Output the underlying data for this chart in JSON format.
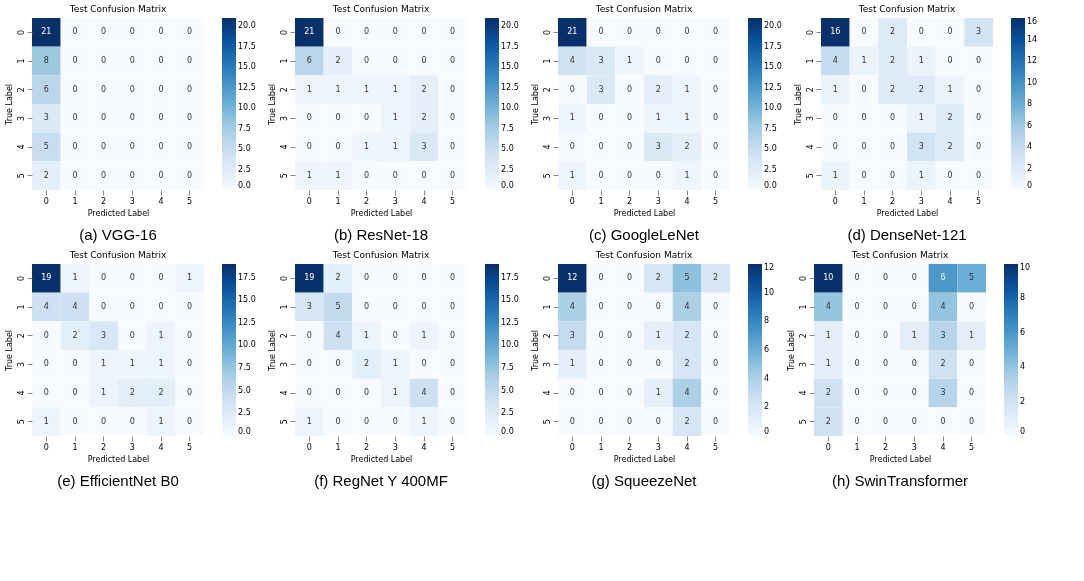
{
  "chart_data": [
    {
      "type": "heatmap",
      "title": "Test Confusion Matrix",
      "xlabel": "Predicted Label",
      "ylabel": "True Label",
      "annotations": [
        "(a) VGG-16"
      ],
      "data_labels": true,
      "categories": [
        "0",
        "1",
        "2",
        "3",
        "4",
        "5"
      ],
      "y_categories": [
        "0",
        "1",
        "2",
        "3",
        "4",
        "5"
      ],
      "cells": [
        [
          21,
          0,
          0,
          0,
          0,
          0
        ],
        [
          8,
          0,
          0,
          0,
          0,
          0
        ],
        [
          6,
          0,
          0,
          0,
          0,
          0
        ],
        [
          3,
          0,
          0,
          0,
          0,
          0
        ],
        [
          5,
          0,
          0,
          0,
          0,
          0
        ],
        [
          2,
          0,
          0,
          0,
          0,
          0
        ]
      ],
      "clim": [
        0,
        21
      ],
      "cticks": [
        {
          "value": 0,
          "label": "0.0"
        },
        2.5,
        {
          "value": 5,
          "label": "5.0"
        },
        7.5,
        {
          "value": 10,
          "label": "10.0"
        },
        12.5,
        {
          "value": 15,
          "label": "15.0"
        },
        17.5,
        {
          "value": 20,
          "label": "20.0"
        }
      ]
    },
    {
      "type": "heatmap",
      "title": "Test Confusion Matrix",
      "xlabel": "Predicted Label",
      "ylabel": "True Label",
      "annotations": [
        "(b) ResNet-18"
      ],
      "data_labels": true,
      "categories": [
        "0",
        "1",
        "2",
        "3",
        "4",
        "5"
      ],
      "y_categories": [
        "0",
        "1",
        "2",
        "3",
        "4",
        "5"
      ],
      "cells": [
        [
          21,
          0,
          0,
          0,
          0,
          0
        ],
        [
          6,
          2,
          0,
          0,
          0,
          0
        ],
        [
          1,
          1,
          1,
          1,
          2,
          0
        ],
        [
          0,
          0,
          0,
          1,
          2,
          0
        ],
        [
          0,
          0,
          1,
          1,
          3,
          0
        ],
        [
          1,
          1,
          0,
          0,
          0,
          0
        ]
      ],
      "clim": [
        0,
        21
      ],
      "cticks": [
        {
          "value": 0,
          "label": "0.0"
        },
        2.5,
        {
          "value": 5,
          "label": "5.0"
        },
        7.5,
        {
          "value": 10,
          "label": "10.0"
        },
        12.5,
        {
          "value": 15,
          "label": "15.0"
        },
        17.5,
        {
          "value": 20,
          "label": "20.0"
        }
      ]
    },
    {
      "type": "heatmap",
      "title": "Test Confusion Matrix",
      "xlabel": "Predicted Label",
      "ylabel": "True Label",
      "annotations": [
        "(c) GoogleLeNet"
      ],
      "data_labels": true,
      "categories": [
        "0",
        "1",
        "2",
        "3",
        "4",
        "5"
      ],
      "y_categories": [
        "0",
        "1",
        "2",
        "3",
        "4",
        "5"
      ],
      "cells": [
        [
          21,
          0,
          0,
          0,
          0,
          0
        ],
        [
          4,
          3,
          1,
          0,
          0,
          0
        ],
        [
          0,
          3,
          0,
          2,
          1,
          0
        ],
        [
          1,
          0,
          0,
          1,
          1,
          0
        ],
        [
          0,
          0,
          0,
          3,
          2,
          0
        ],
        [
          1,
          0,
          0,
          0,
          1,
          0
        ]
      ],
      "clim": [
        0,
        21
      ],
      "cticks": [
        {
          "value": 0,
          "label": "0.0"
        },
        2.5,
        {
          "value": 5,
          "label": "5.0"
        },
        7.5,
        {
          "value": 10,
          "label": "10.0"
        },
        12.5,
        {
          "value": 15,
          "label": "15.0"
        },
        17.5,
        {
          "value": 20,
          "label": "20.0"
        }
      ]
    },
    {
      "type": "heatmap",
      "title": "Test Confusion Matrix",
      "xlabel": "Predicted Label",
      "ylabel": "True Label",
      "annotations": [
        "(d) DenseNet-121"
      ],
      "data_labels": true,
      "categories": [
        "0",
        "1",
        "2",
        "3",
        "4",
        "5"
      ],
      "y_categories": [
        "0",
        "1",
        "2",
        "3",
        "4",
        "5"
      ],
      "cells": [
        [
          16,
          0,
          2,
          0,
          0,
          3
        ],
        [
          4,
          1,
          2,
          1,
          0,
          0
        ],
        [
          1,
          0,
          2,
          2,
          1,
          0
        ],
        [
          0,
          0,
          0,
          1,
          2,
          0
        ],
        [
          0,
          0,
          0,
          3,
          2,
          0
        ],
        [
          1,
          0,
          0,
          1,
          0,
          0
        ]
      ],
      "clim": [
        0,
        16
      ],
      "cticks": [
        0,
        2,
        4,
        6,
        8,
        10,
        12,
        14,
        16
      ]
    },
    {
      "type": "heatmap",
      "title": "Test Confusion Matrix",
      "xlabel": "Predicted Label",
      "ylabel": "True Label",
      "annotations": [
        "(e) EfficientNet B0"
      ],
      "data_labels": true,
      "categories": [
        "0",
        "1",
        "2",
        "3",
        "4",
        "5"
      ],
      "y_categories": [
        "0",
        "1",
        "2",
        "3",
        "4",
        "5"
      ],
      "cells": [
        [
          19,
          1,
          0,
          0,
          0,
          1
        ],
        [
          4,
          4,
          0,
          0,
          0,
          0
        ],
        [
          0,
          2,
          3,
          0,
          1,
          0
        ],
        [
          0,
          0,
          1,
          1,
          1,
          0
        ],
        [
          0,
          0,
          1,
          2,
          2,
          0
        ],
        [
          1,
          0,
          0,
          0,
          1,
          0
        ]
      ],
      "clim": [
        0,
        19
      ],
      "cticks": [
        {
          "value": 0,
          "label": "0.0"
        },
        2.5,
        {
          "value": 5,
          "label": "5.0"
        },
        7.5,
        {
          "value": 10,
          "label": "10.0"
        },
        12.5,
        {
          "value": 15,
          "label": "15.0"
        },
        17.5
      ]
    },
    {
      "type": "heatmap",
      "title": "Test Confusion Matrix",
      "xlabel": "Predicted Label",
      "ylabel": "True Label",
      "annotations": [
        "(f) RegNet Y 400MF"
      ],
      "data_labels": true,
      "categories": [
        "0",
        "1",
        "2",
        "3",
        "4",
        "5"
      ],
      "y_categories": [
        "0",
        "1",
        "2",
        "3",
        "4",
        "5"
      ],
      "cells": [
        [
          19,
          2,
          0,
          0,
          0,
          0
        ],
        [
          3,
          5,
          0,
          0,
          0,
          0
        ],
        [
          0,
          4,
          1,
          0,
          1,
          0
        ],
        [
          0,
          0,
          2,
          1,
          0,
          0
        ],
        [
          0,
          0,
          0,
          1,
          4,
          0
        ],
        [
          1,
          0,
          0,
          0,
          1,
          0
        ]
      ],
      "clim": [
        0,
        19
      ],
      "cticks": [
        {
          "value": 0,
          "label": "0.0"
        },
        2.5,
        {
          "value": 5,
          "label": "5.0"
        },
        7.5,
        {
          "value": 10,
          "label": "10.0"
        },
        12.5,
        {
          "value": 15,
          "label": "15.0"
        },
        17.5
      ]
    },
    {
      "type": "heatmap",
      "title": "Test Confusion Matrix",
      "xlabel": "Predicted Label",
      "ylabel": "True Label",
      "annotations": [
        "(g) SqueezeNet"
      ],
      "data_labels": true,
      "categories": [
        "0",
        "1",
        "2",
        "3",
        "4",
        "5"
      ],
      "y_categories": [
        "0",
        "1",
        "2",
        "3",
        "4",
        "5"
      ],
      "cells": [
        [
          12,
          0,
          0,
          2,
          5,
          2
        ],
        [
          4,
          0,
          0,
          0,
          4,
          0
        ],
        [
          3,
          0,
          0,
          1,
          2,
          0
        ],
        [
          1,
          0,
          0,
          0,
          2,
          0
        ],
        [
          0,
          0,
          0,
          1,
          4,
          0
        ],
        [
          0,
          0,
          0,
          0,
          2,
          0
        ]
      ],
      "clim": [
        0,
        12
      ],
      "cticks": [
        0,
        2,
        4,
        6,
        8,
        10,
        12
      ]
    },
    {
      "type": "heatmap",
      "title": "Test Confusion Matrix",
      "xlabel": "Predicted Label",
      "ylabel": "True Label",
      "annotations": [
        "(h) SwinTransformer"
      ],
      "data_labels": true,
      "categories": [
        "0",
        "1",
        "2",
        "3",
        "4",
        "5"
      ],
      "y_categories": [
        "0",
        "1",
        "2",
        "3",
        "4",
        "5"
      ],
      "cells": [
        [
          10,
          0,
          0,
          0,
          6,
          5
        ],
        [
          4,
          0,
          0,
          0,
          4,
          0
        ],
        [
          1,
          0,
          0,
          1,
          3,
          1
        ],
        [
          1,
          0,
          0,
          0,
          2,
          0
        ],
        [
          2,
          0,
          0,
          0,
          3,
          0
        ],
        [
          2,
          0,
          0,
          0,
          0,
          0
        ]
      ],
      "clim": [
        0,
        10
      ],
      "cticks": [
        0,
        2,
        4,
        6,
        8,
        10
      ]
    }
  ]
}
